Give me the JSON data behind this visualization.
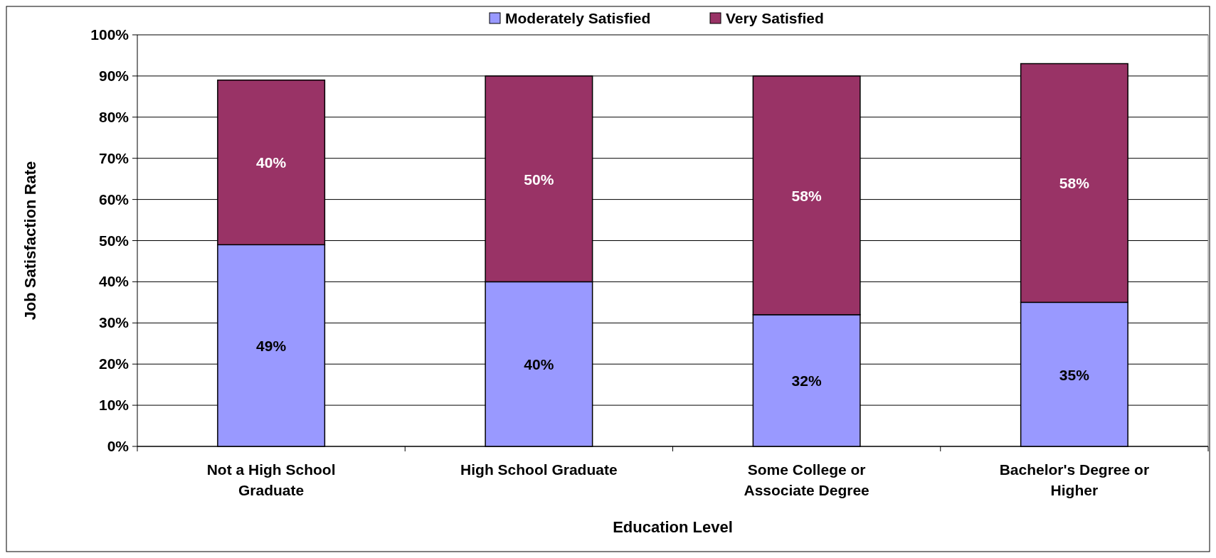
{
  "chart_data": {
    "type": "bar",
    "stacked": true,
    "xlabel": "Education Level",
    "ylabel": "Job Satisfaction Rate",
    "categories": [
      "Not a High School Graduate",
      "High School Graduate",
      "Some College or Associate Degree",
      "Bachelor's Degree or Higher"
    ],
    "series": [
      {
        "name": "Moderately Satisfied",
        "color": "#9999ff",
        "values": [
          49,
          40,
          32,
          35
        ],
        "value_labels": [
          "49%",
          "40%",
          "32%",
          "35%"
        ]
      },
      {
        "name": "Very Satisfied",
        "color": "#993366",
        "values": [
          40,
          50,
          58,
          58
        ],
        "value_labels": [
          "40%",
          "50%",
          "58%",
          "58%"
        ]
      }
    ],
    "ylim": [
      0,
      100
    ],
    "yticks": [
      {
        "value": 0,
        "label": "0%"
      },
      {
        "value": 10,
        "label": "10%"
      },
      {
        "value": 20,
        "label": "20%"
      },
      {
        "value": 30,
        "label": "30%"
      },
      {
        "value": 40,
        "label": "40%"
      },
      {
        "value": 50,
        "label": "50%"
      },
      {
        "value": 60,
        "label": "60%"
      },
      {
        "value": 70,
        "label": "70%"
      },
      {
        "value": 80,
        "label": "80%"
      },
      {
        "value": 90,
        "label": "90%"
      },
      {
        "value": 100,
        "label": "100%"
      }
    ],
    "grid": "y",
    "legend": "top"
  }
}
